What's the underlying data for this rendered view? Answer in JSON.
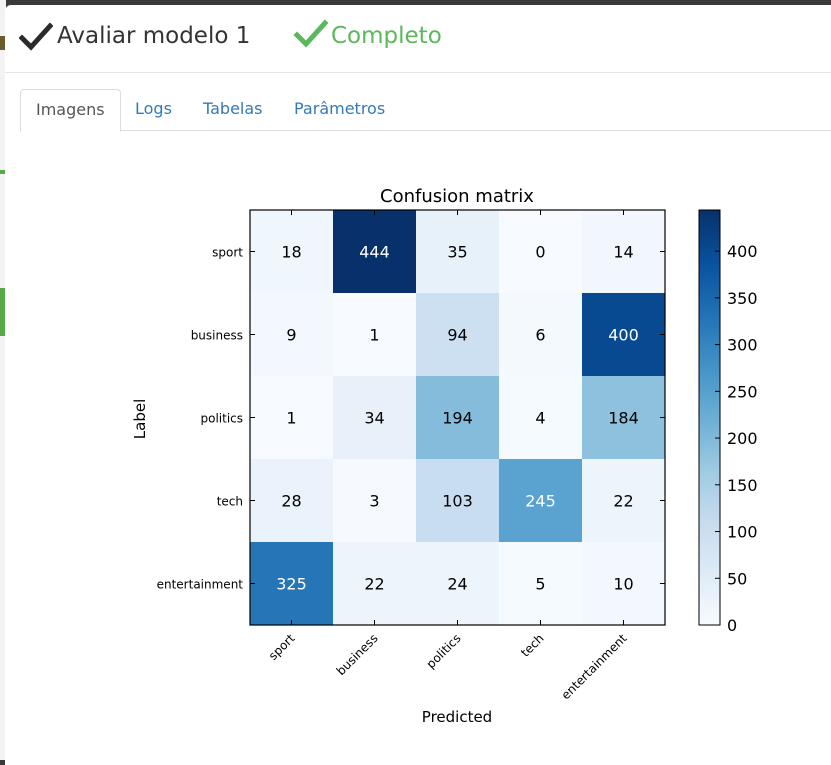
{
  "header": {
    "title": "Avaliar modelo 1",
    "status": "Completo",
    "title_icon": "check-icon",
    "status_icon": "check-icon",
    "status_color": "#5cb85c"
  },
  "tabs": [
    {
      "label": "Imagens",
      "active": true
    },
    {
      "label": "Logs",
      "active": false
    },
    {
      "label": "Tabelas",
      "active": false
    },
    {
      "label": "Parâmetros",
      "active": false
    }
  ],
  "chart_data": {
    "type": "heatmap",
    "title": "Confusion matrix",
    "xlabel": "Predicted",
    "ylabel": "Label",
    "x_categories": [
      "sport",
      "business",
      "politics",
      "tech",
      "entertainment"
    ],
    "y_categories": [
      "sport",
      "business",
      "politics",
      "tech",
      "entertainment"
    ],
    "values": [
      [
        18,
        444,
        35,
        0,
        14
      ],
      [
        9,
        1,
        94,
        6,
        400
      ],
      [
        1,
        34,
        194,
        4,
        184
      ],
      [
        28,
        3,
        103,
        245,
        22
      ],
      [
        325,
        22,
        24,
        5,
        10
      ]
    ],
    "colormap": "Blues",
    "value_range": [
      0,
      444
    ],
    "colorbar_ticks": [
      0,
      50,
      100,
      150,
      200,
      250,
      300,
      350,
      400
    ]
  }
}
